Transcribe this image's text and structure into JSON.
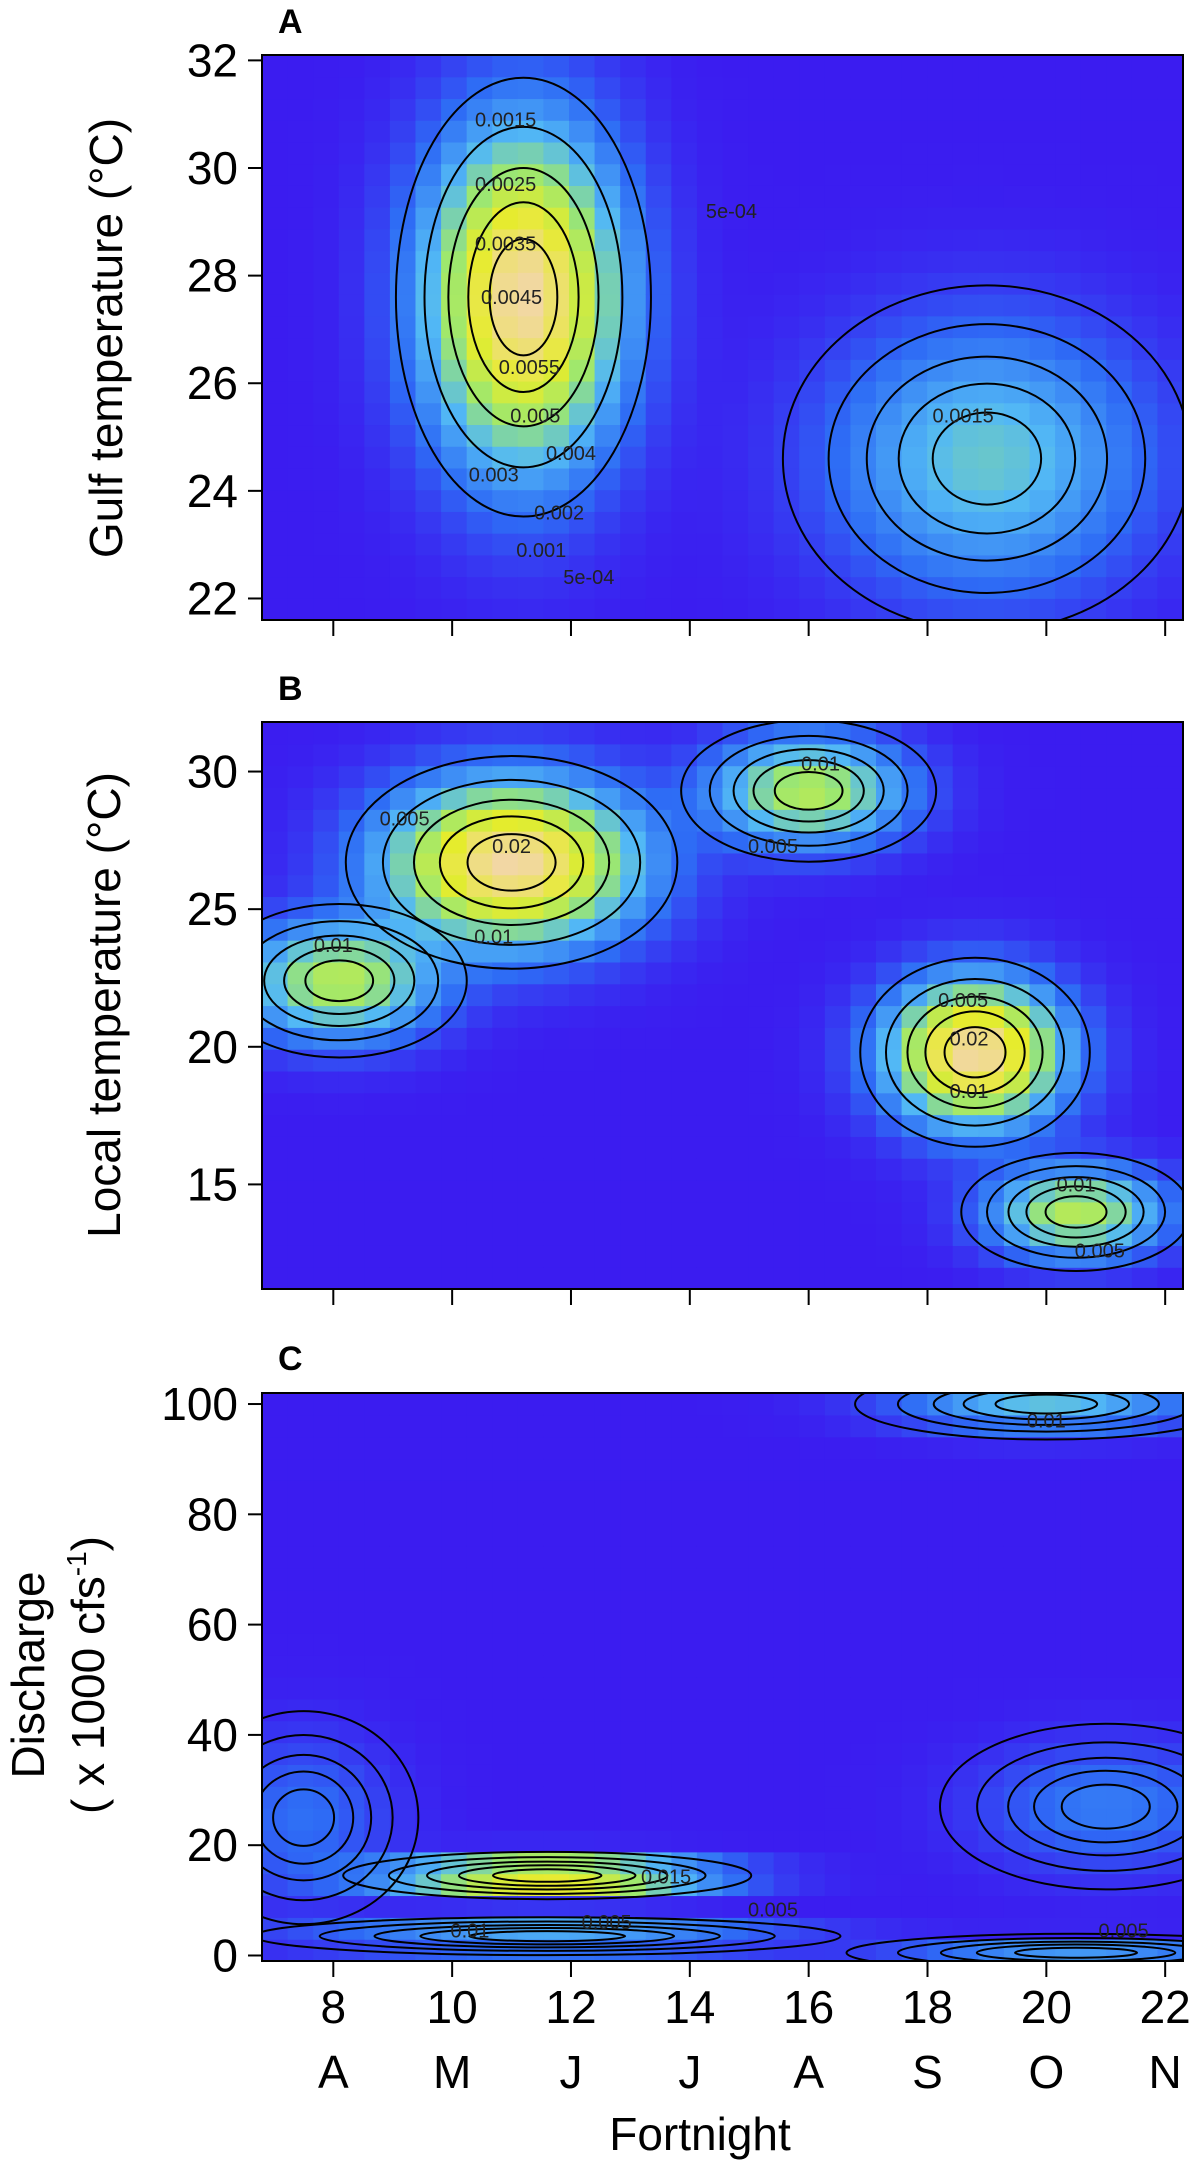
{
  "figure": {
    "xlabel": "Fortnight",
    "month_labels": [
      {
        "x": 8,
        "label": "A"
      },
      {
        "x": 10,
        "label": "M"
      },
      {
        "x": 12,
        "label": "J"
      },
      {
        "x": 14,
        "label": "J"
      },
      {
        "x": 16,
        "label": "A"
      },
      {
        "x": 18,
        "label": "S"
      },
      {
        "x": 20,
        "label": "O"
      },
      {
        "x": 22,
        "label": "N"
      }
    ],
    "colors": {
      "low": "#3b1cf0",
      "mid1": "#2e6cf5",
      "mid2": "#52b8f5",
      "mid3": "#9ee86e",
      "mid4": "#e6ec2c",
      "high": "#f2d7a6",
      "contour": "#000000"
    }
  },
  "chart_data": [
    {
      "panel": "A",
      "type": "heatmap",
      "title": "",
      "xlabel": "",
      "ylabel": "Gulf temperature  (°C)",
      "xlim": [
        6.8,
        22.3
      ],
      "ylim": [
        21.6,
        32.1
      ],
      "x_ticks": [
        8,
        10,
        12,
        14,
        16,
        18,
        20,
        22
      ],
      "y_ticks": [
        22,
        24,
        26,
        28,
        30,
        32
      ],
      "show_x_tick_labels": false,
      "density_peaks": [
        {
          "x": 11.2,
          "y": 27.6,
          "sx": 1.0,
          "sy": 1.9,
          "value": 0.0055
        },
        {
          "x": 19.0,
          "y": 24.6,
          "sx": 1.6,
          "sy": 1.5,
          "value": 0.0018
        }
      ],
      "contour_labels": [
        {
          "x": 10.9,
          "y": 30.9,
          "text": "0.0015"
        },
        {
          "x": 10.9,
          "y": 29.7,
          "text": "0.0025"
        },
        {
          "x": 10.9,
          "y": 28.6,
          "text": "0.0035"
        },
        {
          "x": 11.0,
          "y": 27.6,
          "text": "0.0045"
        },
        {
          "x": 11.3,
          "y": 26.3,
          "text": "0.0055"
        },
        {
          "x": 11.4,
          "y": 25.4,
          "text": "0.005"
        },
        {
          "x": 12.0,
          "y": 24.7,
          "text": "0.004"
        },
        {
          "x": 10.7,
          "y": 24.3,
          "text": "0.003"
        },
        {
          "x": 11.8,
          "y": 23.6,
          "text": "0.002"
        },
        {
          "x": 11.5,
          "y": 22.9,
          "text": "0.001"
        },
        {
          "x": 12.3,
          "y": 22.4,
          "text": "5e-04"
        },
        {
          "x": 14.7,
          "y": 29.2,
          "text": "5e-04"
        },
        {
          "x": 18.6,
          "y": 25.4,
          "text": "0.0015"
        }
      ]
    },
    {
      "panel": "B",
      "type": "heatmap",
      "title": "",
      "xlabel": "",
      "ylabel": "Local temperature  (°C)",
      "xlim": [
        6.8,
        22.3
      ],
      "ylim": [
        11.2,
        31.8
      ],
      "x_ticks": [
        8,
        10,
        12,
        14,
        16,
        18,
        20,
        22
      ],
      "y_ticks": [
        15,
        20,
        25,
        30
      ],
      "show_x_tick_labels": false,
      "density_peaks": [
        {
          "x": 8.1,
          "y": 22.4,
          "sx": 1.0,
          "sy": 1.3,
          "value": 0.012
        },
        {
          "x": 11.0,
          "y": 26.7,
          "sx": 1.3,
          "sy": 1.8,
          "value": 0.022
        },
        {
          "x": 16.0,
          "y": 29.3,
          "sx": 1.0,
          "sy": 1.2,
          "value": 0.012
        },
        {
          "x": 18.8,
          "y": 19.8,
          "sx": 0.9,
          "sy": 1.6,
          "value": 0.022
        },
        {
          "x": 20.5,
          "y": 14.0,
          "sx": 0.9,
          "sy": 1.0,
          "value": 0.012
        }
      ],
      "contour_labels": [
        {
          "x": 9.2,
          "y": 28.3,
          "text": "0.005"
        },
        {
          "x": 11.0,
          "y": 27.3,
          "text": "0.02"
        },
        {
          "x": 10.7,
          "y": 24.0,
          "text": "0.01"
        },
        {
          "x": 8.0,
          "y": 23.7,
          "text": "0.01"
        },
        {
          "x": 16.2,
          "y": 30.3,
          "text": "0.01"
        },
        {
          "x": 15.4,
          "y": 27.3,
          "text": "0.005"
        },
        {
          "x": 18.6,
          "y": 21.7,
          "text": "0.005"
        },
        {
          "x": 18.7,
          "y": 20.3,
          "text": "0.02"
        },
        {
          "x": 18.7,
          "y": 18.4,
          "text": "0.01"
        },
        {
          "x": 20.5,
          "y": 15.0,
          "text": "0.01"
        },
        {
          "x": 20.9,
          "y": 12.6,
          "text": "0.005"
        }
      ]
    },
    {
      "panel": "C",
      "type": "heatmap",
      "title": "",
      "xlabel": "Fortnight",
      "ylabel": "Discharge",
      "ylabel_line2": "( x 1000 cfs",
      "ylabel_superscript": "-1",
      "ylabel_close": ")",
      "xlim": [
        6.8,
        22.3
      ],
      "ylim": [
        -1,
        102
      ],
      "x_ticks": [
        8,
        10,
        12,
        14,
        16,
        18,
        20,
        22
      ],
      "y_ticks": [
        0,
        20,
        40,
        60,
        80,
        100
      ],
      "show_x_tick_labels": true,
      "density_peaks": [
        {
          "x": 11.6,
          "y": 14.5,
          "sx": 1.6,
          "sy": 2.0,
          "value": 0.04
        },
        {
          "x": 11.6,
          "y": 3.5,
          "sx": 2.3,
          "sy": 1.6,
          "value": 0.014
        },
        {
          "x": 20.0,
          "y": 100,
          "sx": 1.5,
          "sy": 3.0,
          "value": 0.012
        },
        {
          "x": 20.5,
          "y": 0.5,
          "sx": 1.8,
          "sy": 1.6,
          "value": 0.008
        },
        {
          "x": 7.5,
          "y": 25,
          "sx": 0.9,
          "sy": 9.0,
          "value": 0.004
        },
        {
          "x": 21.0,
          "y": 27,
          "sx": 1.3,
          "sy": 7.0,
          "value": 0.005
        }
      ],
      "contour_labels": [
        {
          "x": 13.6,
          "y": 14.3,
          "text": "0.015"
        },
        {
          "x": 15.4,
          "y": 8.3,
          "text": "0.005"
        },
        {
          "x": 12.6,
          "y": 6.1,
          "text": "0.005"
        },
        {
          "x": 10.3,
          "y": 4.5,
          "text": "0.01"
        },
        {
          "x": 20.0,
          "y": 97.0,
          "text": "0.01"
        },
        {
          "x": 21.3,
          "y": 4.5,
          "text": "0.005"
        }
      ]
    }
  ]
}
